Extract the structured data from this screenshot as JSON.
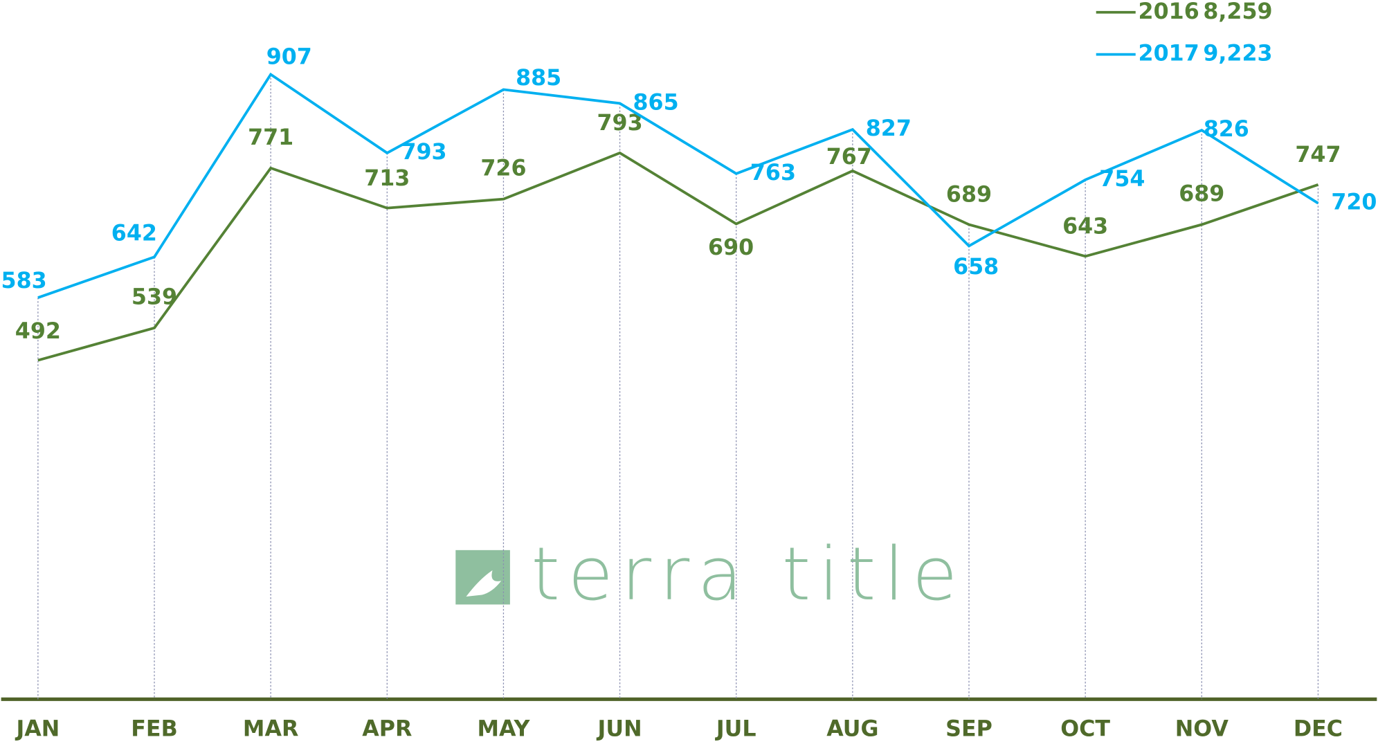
{
  "chart_data": {
    "type": "line",
    "categories": [
      "JAN",
      "FEB",
      "MAR",
      "APR",
      "MAY",
      "JUN",
      "JUL",
      "AUG",
      "SEP",
      "OCT",
      "NOV",
      "DEC"
    ],
    "series": [
      {
        "name": "2016",
        "total_label": "8,259",
        "color": "#548235",
        "values": [
          492,
          539,
          771,
          713,
          726,
          793,
          690,
          767,
          689,
          643,
          689,
          747
        ]
      },
      {
        "name": "2017",
        "total_label": "9,223",
        "color": "#00b0f0",
        "values": [
          583,
          642,
          907,
          793,
          885,
          865,
          763,
          827,
          658,
          754,
          826,
          720
        ]
      }
    ],
    "ylim": [
      0,
      1015
    ],
    "watermark": "terra title"
  }
}
